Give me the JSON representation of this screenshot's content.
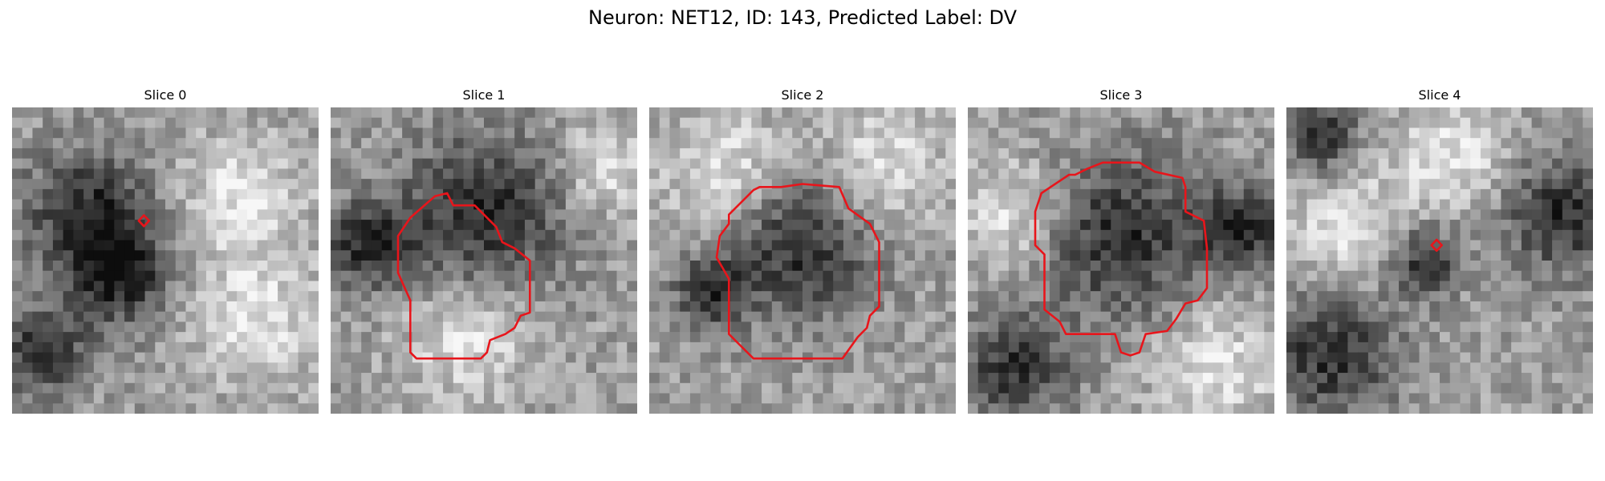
{
  "figure": {
    "title": "Neuron: NET12, ID: 143, Predicted Label: DV"
  },
  "style": {
    "contour_color": "#e8151b",
    "colormap": "gray"
  },
  "panels": [
    {
      "title": "Slice 0",
      "seed": 11,
      "dark_blobs": [
        [
          0.25,
          0.35,
          0.22
        ],
        [
          0.35,
          0.55,
          0.18
        ],
        [
          0.1,
          0.8,
          0.15
        ]
      ],
      "light_blobs": [
        [
          0.75,
          0.3,
          0.2
        ],
        [
          0.8,
          0.7,
          0.2
        ]
      ],
      "contour": "tiny",
      "contour_center": [
        0.43,
        0.37
      ]
    },
    {
      "title": "Slice 1",
      "seed": 23,
      "dark_blobs": [
        [
          0.5,
          0.35,
          0.28
        ],
        [
          0.12,
          0.45,
          0.15
        ]
      ],
      "light_blobs": [
        [
          0.45,
          0.75,
          0.2
        ],
        [
          0.9,
          0.2,
          0.15
        ]
      ],
      "contour": "large",
      "contour_center": [
        0.45,
        0.55
      ]
    },
    {
      "title": "Slice 2",
      "seed": 37,
      "dark_blobs": [
        [
          0.5,
          0.45,
          0.25
        ],
        [
          0.2,
          0.6,
          0.12
        ]
      ],
      "light_blobs": [
        [
          0.75,
          0.2,
          0.2
        ],
        [
          0.25,
          0.2,
          0.2
        ]
      ],
      "contour": "large",
      "contour_center": [
        0.5,
        0.55
      ]
    },
    {
      "title": "Slice 3",
      "seed": 41,
      "dark_blobs": [
        [
          0.5,
          0.42,
          0.28
        ],
        [
          0.15,
          0.85,
          0.18
        ],
        [
          0.9,
          0.4,
          0.15
        ]
      ],
      "light_blobs": [
        [
          0.15,
          0.35,
          0.18
        ],
        [
          0.8,
          0.85,
          0.2
        ]
      ],
      "contour": "large",
      "contour_center": [
        0.5,
        0.45
      ]
    },
    {
      "title": "Slice 4",
      "seed": 53,
      "dark_blobs": [
        [
          0.15,
          0.8,
          0.22
        ],
        [
          0.9,
          0.35,
          0.2
        ],
        [
          0.12,
          0.1,
          0.12
        ],
        [
          0.45,
          0.5,
          0.12
        ]
      ],
      "light_blobs": [
        [
          0.2,
          0.4,
          0.2
        ],
        [
          0.55,
          0.15,
          0.18
        ]
      ],
      "contour": "tiny",
      "contour_center": [
        0.49,
        0.45
      ]
    }
  ]
}
